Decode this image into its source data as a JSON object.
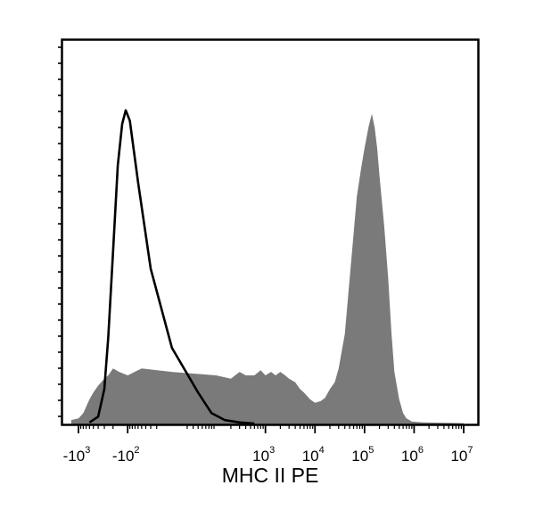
{
  "chart_data": {
    "type": "area",
    "title": "",
    "xlabel": "MHC II PE",
    "ylabel": "",
    "x_scale": "biexponential",
    "x_ticks": [
      {
        "value": -1000,
        "base": "-10",
        "exp": "3"
      },
      {
        "value": -100,
        "base": "-10",
        "exp": "2"
      },
      {
        "value": 1000,
        "base": "10",
        "exp": "3"
      },
      {
        "value": 10000,
        "base": "10",
        "exp": "4"
      },
      {
        "value": 100000,
        "base": "10",
        "exp": "5"
      },
      {
        "value": 1000000,
        "base": "10",
        "exp": "6"
      },
      {
        "value": 10000000,
        "base": "10",
        "exp": "7"
      }
    ],
    "ylim": [
      0,
      100
    ],
    "grid": false,
    "legend": "none",
    "series": [
      {
        "style": "filled",
        "color": "#7a7a7a",
        "points": [
          [
            -1400,
            1
          ],
          [
            -1000,
            1.5
          ],
          [
            -800,
            3
          ],
          [
            -600,
            7
          ],
          [
            -500,
            9
          ],
          [
            -400,
            11
          ],
          [
            -300,
            13
          ],
          [
            -250,
            14
          ],
          [
            -200,
            16
          ],
          [
            -150,
            15
          ],
          [
            -100,
            14
          ],
          [
            -50,
            16
          ],
          [
            0,
            15
          ],
          [
            100,
            14
          ],
          [
            200,
            13
          ],
          [
            300,
            15
          ],
          [
            400,
            14
          ],
          [
            600,
            14
          ],
          [
            800,
            15.5
          ],
          [
            1000,
            14
          ],
          [
            1300,
            15
          ],
          [
            1600,
            14
          ],
          [
            2000,
            15
          ],
          [
            2500,
            14
          ],
          [
            3000,
            13
          ],
          [
            4000,
            12
          ],
          [
            5000,
            10
          ],
          [
            6000,
            9
          ],
          [
            8000,
            7
          ],
          [
            10000,
            6
          ],
          [
            13000,
            6.5
          ],
          [
            16000,
            7.5
          ],
          [
            20000,
            10
          ],
          [
            25000,
            12
          ],
          [
            30000,
            16
          ],
          [
            40000,
            26
          ],
          [
            50000,
            42
          ],
          [
            60000,
            55
          ],
          [
            70000,
            66
          ],
          [
            85000,
            74
          ],
          [
            100000,
            80
          ],
          [
            120000,
            86
          ],
          [
            140000,
            90
          ],
          [
            160000,
            86
          ],
          [
            180000,
            80
          ],
          [
            200000,
            72
          ],
          [
            250000,
            57
          ],
          [
            300000,
            42
          ],
          [
            350000,
            26
          ],
          [
            400000,
            15
          ],
          [
            500000,
            7
          ],
          [
            600000,
            3
          ],
          [
            700000,
            1.5
          ],
          [
            900000,
            0.6
          ],
          [
            1500000,
            0.3
          ],
          [
            10000000,
            0.1
          ]
        ]
      },
      {
        "style": "outline",
        "color": "#000000",
        "points": [
          [
            -600,
            0.3
          ],
          [
            -400,
            2
          ],
          [
            -300,
            10
          ],
          [
            -250,
            25
          ],
          [
            -200,
            50
          ],
          [
            -160,
            75
          ],
          [
            -130,
            87
          ],
          [
            -110,
            91
          ],
          [
            -90,
            88
          ],
          [
            -60,
            70
          ],
          [
            -30,
            45
          ],
          [
            0,
            22
          ],
          [
            40,
            9
          ],
          [
            80,
            3
          ],
          [
            150,
            1
          ],
          [
            300,
            0.3
          ],
          [
            600,
            0
          ]
        ]
      }
    ]
  }
}
